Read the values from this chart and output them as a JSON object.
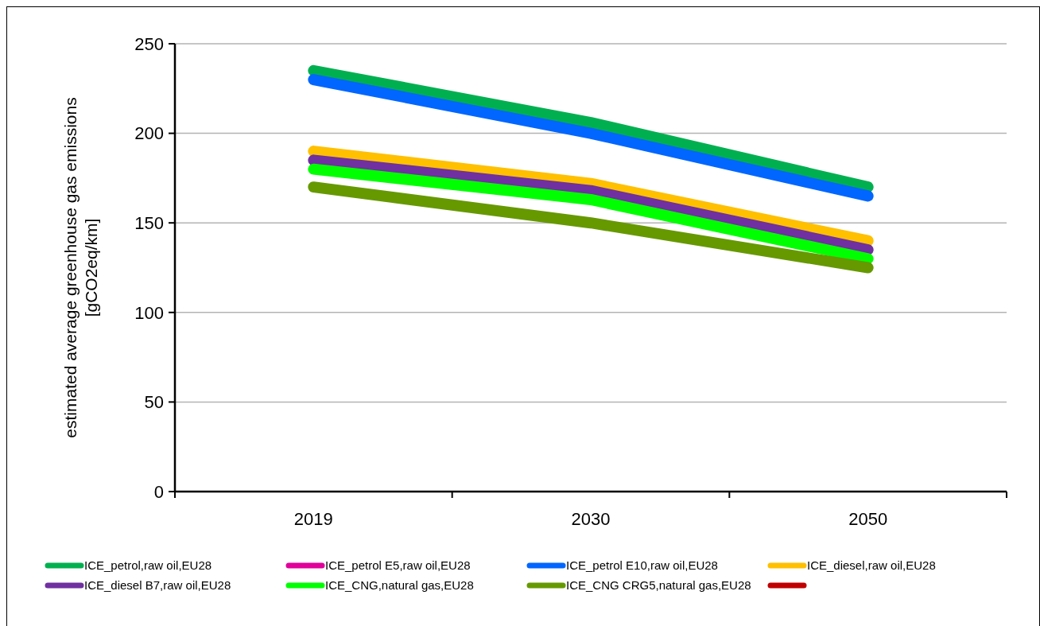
{
  "chart_data": {
    "type": "line",
    "ylabel": "estimated average greenhouse gas emissions [gCO2eq/km]",
    "categories": [
      "2019",
      "2030",
      "2050"
    ],
    "ylim": [
      0,
      250
    ],
    "yticks": [
      0,
      50,
      100,
      150,
      200,
      250
    ],
    "grid": "y",
    "legend": "bottom",
    "marker": "none",
    "line_style": "solid",
    "series": [
      {
        "name": "ICE_petrol,raw oil,EU28",
        "color": "#00b050",
        "values": [
          235,
          206,
          170
        ]
      },
      {
        "name": "ICE_petrol E5,raw oil,EU28",
        "color": "#e0009a",
        "values": [
          null,
          null,
          null
        ]
      },
      {
        "name": "ICE_petrol E10,raw oil,EU28",
        "color": "#0066ff",
        "values": [
          230,
          200,
          165
        ]
      },
      {
        "name": "ICE_diesel,raw oil,EU28",
        "color": "#ffc000",
        "values": [
          190,
          172,
          140
        ]
      },
      {
        "name": "ICE_diesel B7,raw oil,EU28",
        "color": "#7030a0",
        "values": [
          185,
          168,
          135
        ]
      },
      {
        "name": "ICE_CNG,natural gas,EU28",
        "color": "#00ff00",
        "values": [
          180,
          163,
          130
        ]
      },
      {
        "name": "ICE_CNG CRG5,natural gas,EU28",
        "color": "#669900",
        "values": [
          170,
          150,
          125
        ]
      },
      {
        "color": "#c00000",
        "values": [
          null,
          null,
          null
        ]
      }
    ]
  }
}
